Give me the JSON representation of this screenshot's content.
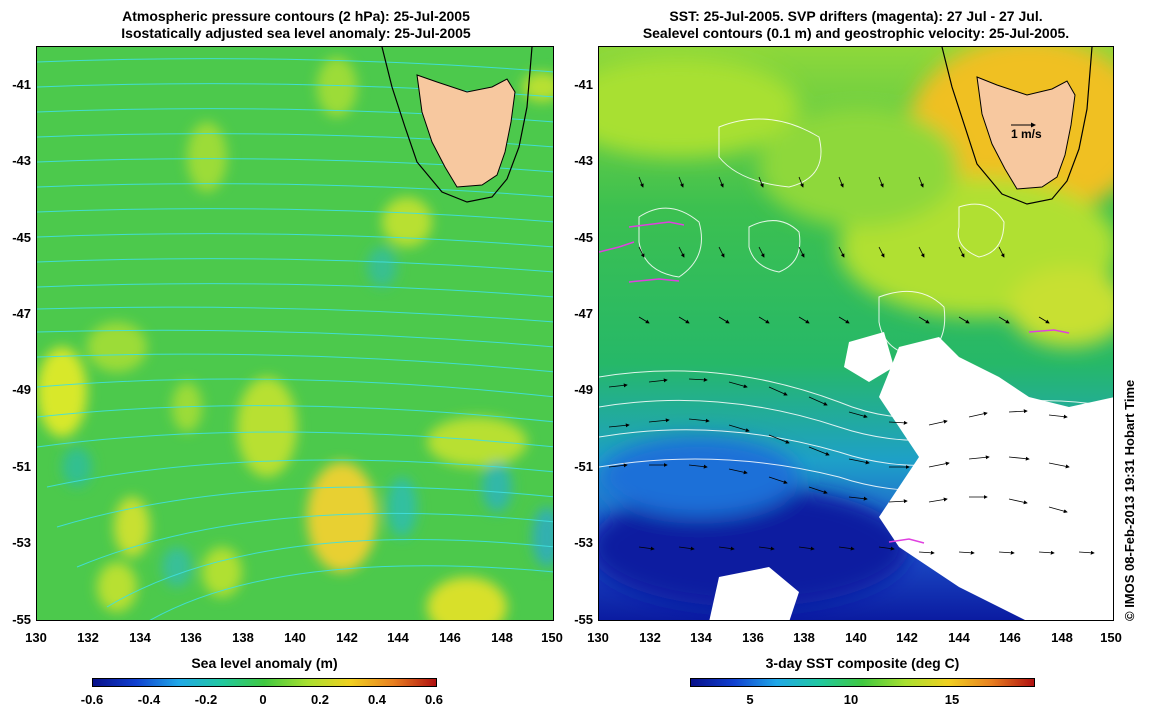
{
  "left_panel": {
    "title_line1": "Atmospheric pressure contours (2 hPa): 25-Jul-2005",
    "title_line2": "Isostatically adjusted sea level anomaly: 25-Jul-2005",
    "colorbar_label": "Sea level anomaly (m)",
    "colorbar_ticks": [
      "-0.6",
      "-0.4",
      "-0.2",
      "0",
      "0.2",
      "0.4",
      "0.6"
    ]
  },
  "right_panel": {
    "title_line1": "SST: 25-Jul-2005. SVP drifters (magenta): 27 Jul - 27 Jul.",
    "title_line2": "Sealevel contours (0.1 m) and geostrophic velocity: 25-Jul-2005.",
    "colorbar_label": "3-day SST composite (deg C)",
    "colorbar_ticks": [
      "5",
      "10",
      "15"
    ],
    "velocity_scale_label": "1 m/s"
  },
  "axes": {
    "lat_ticks": [
      "-41",
      "-43",
      "-45",
      "-47",
      "-49",
      "-51",
      "-53",
      "-55"
    ],
    "lon_ticks": [
      "130",
      "132",
      "134",
      "136",
      "138",
      "140",
      "142",
      "144",
      "146",
      "148",
      "150"
    ]
  },
  "credit": "© IMOS 08-Feb-2013 19:31 Hobart Time",
  "colors": {
    "land": "#f7c89f",
    "contour": "#40e0e0",
    "drifter": "#e040e0"
  }
}
